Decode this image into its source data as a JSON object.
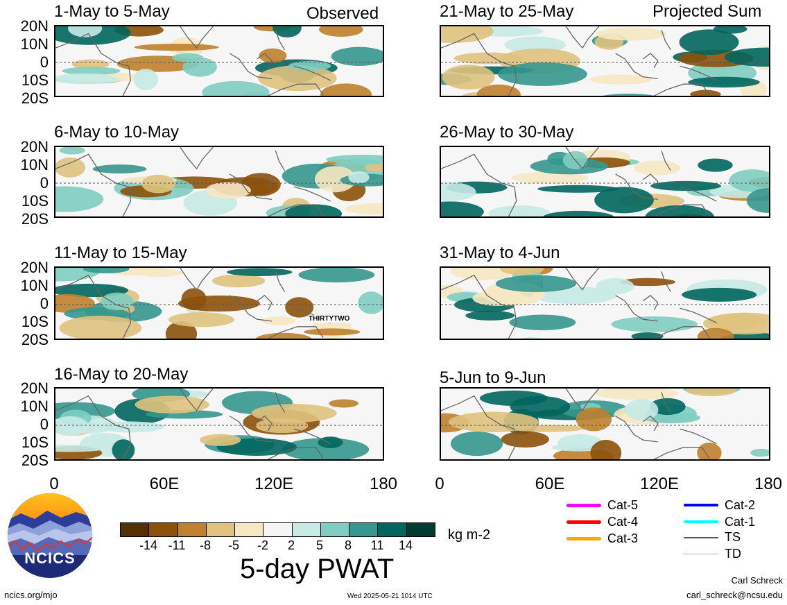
{
  "tags": {
    "observed": "Observed",
    "projected": "Projected Sum"
  },
  "lat_labels": [
    "20N",
    "10N",
    "0",
    "10S",
    "20S"
  ],
  "lon_labels": [
    "0",
    "60E",
    "120E",
    "180"
  ],
  "panels": [
    {
      "title": "1-May to 5-May"
    },
    {
      "title": "21-May to 25-May"
    },
    {
      "title": "6-May to 10-May"
    },
    {
      "title": "26-May to 30-May"
    },
    {
      "title": "11-May to 15-May",
      "storm_label": "THIRTYTWO"
    },
    {
      "title": "31-May to 4-Jun"
    },
    {
      "title": "16-May to 20-May"
    },
    {
      "title": "5-Jun to 9-Jun"
    }
  ],
  "colorbar": {
    "ticks": [
      "-14",
      "-11",
      "-8",
      "-5",
      "-2",
      "2",
      "5",
      "8",
      "11",
      "14"
    ],
    "units": "kg m-2",
    "title": "5-day PWAT",
    "colors": [
      "#543005",
      "#8c510a",
      "#bf812d",
      "#dfc27d",
      "#f6e8c3",
      "#f5f5f5",
      "#c7eae5",
      "#80cdc1",
      "#35978f",
      "#01665e",
      "#003c30"
    ]
  },
  "storm_legend": [
    {
      "label": "Cat-5",
      "color": "#ff00ff"
    },
    {
      "label": "Cat-4",
      "color": "#ff0000"
    },
    {
      "label": "Cat-3",
      "color": "#ffa500"
    },
    {
      "label": "Cat-2",
      "color": "#0000ff"
    },
    {
      "label": "Cat-1",
      "color": "#00ffff"
    },
    {
      "label": "TS",
      "color": "#555555"
    },
    {
      "label": "TD",
      "color": "#aaaaaa"
    }
  ],
  "logo": {
    "text": "NCICS"
  },
  "footer": {
    "url": "ncics.org/mjo",
    "timestamp": "Wed 2025-05-21 1014 UTC",
    "author": "Carl Schreck",
    "email": "carl_schreck@ncsu.edu"
  }
}
